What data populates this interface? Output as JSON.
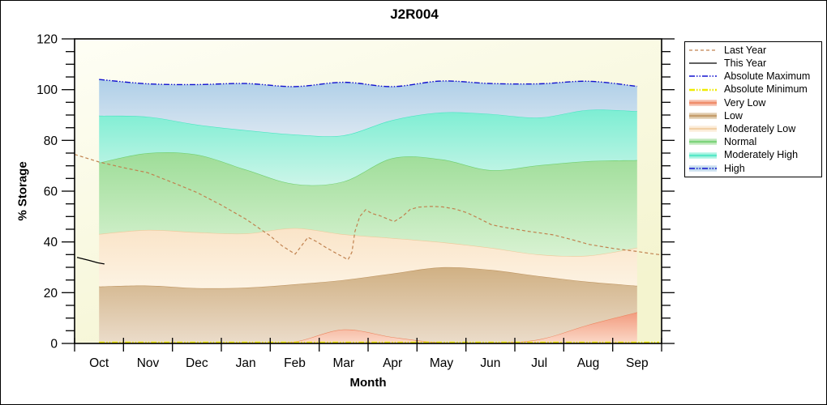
{
  "title": "J2R004",
  "axes": {
    "x_label": "Month",
    "y_label": "% Storage",
    "x_categories": [
      "Oct",
      "Nov",
      "Dec",
      "Jan",
      "Feb",
      "Mar",
      "Apr",
      "May",
      "Jun",
      "Jul",
      "Aug",
      "Sep"
    ],
    "y_major_ticks": [
      0,
      20,
      40,
      60,
      80,
      100,
      120
    ],
    "y_minor_step": 5,
    "ylim": [
      0,
      120
    ],
    "grid": false
  },
  "colors": {
    "plot_bg_top": "#fefef5",
    "plot_bg_bottom": "#f4f4cf",
    "axis": "#000000"
  },
  "legend": {
    "position": "right",
    "entries": [
      {
        "label": "Last Year",
        "type": "line",
        "style": "dashed",
        "color": "#c0824f",
        "width": 1.2
      },
      {
        "label": "This Year",
        "type": "line",
        "style": "solid",
        "color": "#000000",
        "width": 1.3
      },
      {
        "label": "Absolute Maximum",
        "type": "line",
        "style": "dashdotdot",
        "color": "#1212cf",
        "width": 1.4
      },
      {
        "label": "Absolute Minimum",
        "type": "line",
        "style": "dashdotdot",
        "color": "#efeb00",
        "width": 2.6
      },
      {
        "label": "Very Low",
        "type": "band",
        "fill": "#f29b7e",
        "edge": "#ed8660"
      },
      {
        "label": "Low",
        "type": "band",
        "fill": "#d0b083",
        "edge": "#bf9663"
      },
      {
        "label": "Moderately Low",
        "type": "band",
        "fill": "#fae4c8",
        "edge": "#eec99a"
      },
      {
        "label": "Normal",
        "type": "band",
        "fill": "#9edd98",
        "edge": "#6fcf6f"
      },
      {
        "label": "Moderately High",
        "type": "band",
        "fill": "#7deed3",
        "edge": "#48e5c2"
      },
      {
        "label": "High",
        "type": "band",
        "fill": "#afcfe8",
        "edge": "#1212cf",
        "edge_style": "dashdotdot"
      }
    ]
  },
  "chart_data": {
    "type": "area",
    "title": "J2R004",
    "xlabel": "Month",
    "ylabel": "% Storage",
    "categories": [
      "Oct",
      "Nov",
      "Dec",
      "Jan",
      "Feb",
      "Mar",
      "Apr",
      "May",
      "Jun",
      "Jul",
      "Aug",
      "Sep"
    ],
    "ylim": [
      0,
      120
    ],
    "x_note": "band values sampled at month centers, u = monthIndex + 0.5 on a 0..12 axis",
    "bands": [
      {
        "name": "Very Low",
        "top": [
          0.2,
          0.2,
          0.2,
          0.3,
          0.7,
          5.5,
          2.5,
          0.3,
          0.2,
          1.6,
          7.3,
          12.3
        ],
        "edge": "#ed8660",
        "fill_top": "#f29b7e",
        "fill_bottom": "#fbd9c8"
      },
      {
        "name": "Low",
        "top": [
          22.4,
          22.8,
          21.8,
          22.0,
          23.3,
          25.0,
          27.5,
          30.0,
          29.0,
          26.5,
          24.3,
          22.7
        ],
        "edge": "#bf9663",
        "fill_top": "#d0b083",
        "fill_bottom": "#ebdcca"
      },
      {
        "name": "Moderately Low",
        "top": [
          43.1,
          44.7,
          43.8,
          43.3,
          45.4,
          43.0,
          41.5,
          39.9,
          37.7,
          35.0,
          34.6,
          37.7
        ],
        "edge": "#eec99a",
        "fill_top": "#fae4c8",
        "fill_bottom": "#fdf3e3"
      },
      {
        "name": "Normal",
        "top": [
          71.2,
          75.0,
          74.4,
          68.5,
          62.8,
          63.8,
          73.0,
          72.5,
          68.3,
          70.2,
          71.8,
          72.2
        ],
        "edge": "#6fcf6f",
        "fill_top": "#9edd98",
        "fill_bottom": "#d8f2d2"
      },
      {
        "name": "Moderately High",
        "top": [
          89.7,
          89.3,
          86.2,
          84.0,
          82.3,
          82.0,
          88.0,
          91.0,
          90.4,
          89.0,
          92.0,
          91.5
        ],
        "edge": "#48e5c2",
        "fill_top": "#7deed3",
        "fill_bottom": "#cbf5e8"
      },
      {
        "name": "High",
        "top": [
          104.0,
          102.3,
          102.0,
          102.4,
          101.2,
          102.9,
          101.2,
          103.4,
          102.4,
          102.3,
          103.3,
          101.3
        ],
        "edge": null,
        "fill_top": "#afcfe8",
        "fill_bottom": "#d9e6f1"
      }
    ],
    "lines": [
      {
        "name": "Last Year",
        "style": "dashed",
        "color": "#c0824f",
        "width": 1.2,
        "smooth": false,
        "points": [
          [
            0,
            74.5
          ],
          [
            0.5,
            71.5
          ],
          [
            0.99,
            69.3
          ],
          [
            1.49,
            67.3
          ],
          [
            1.99,
            63.5
          ],
          [
            2.5,
            59.5
          ],
          [
            3.0,
            54.5
          ],
          [
            3.5,
            49.0
          ],
          [
            3.99,
            42.5
          ],
          [
            4.24,
            38.5
          ],
          [
            4.51,
            35.2
          ],
          [
            4.64,
            38.5
          ],
          [
            4.77,
            41.8
          ],
          [
            4.96,
            40.0
          ],
          [
            5.12,
            38.0
          ],
          [
            5.35,
            35.5
          ],
          [
            5.59,
            33.0
          ],
          [
            5.67,
            36.0
          ],
          [
            5.73,
            44.0
          ],
          [
            5.83,
            50.0
          ],
          [
            5.95,
            52.7
          ],
          [
            6.08,
            51.2
          ],
          [
            6.23,
            50.4
          ],
          [
            6.38,
            49.2
          ],
          [
            6.53,
            48.0
          ],
          [
            6.7,
            50.0
          ],
          [
            6.86,
            52.8
          ],
          [
            7.03,
            53.7
          ],
          [
            7.28,
            54.0
          ],
          [
            7.52,
            53.8
          ],
          [
            7.77,
            53.0
          ],
          [
            8.02,
            51.5
          ],
          [
            8.27,
            49.2
          ],
          [
            8.52,
            46.8
          ],
          [
            8.77,
            45.8
          ],
          [
            9.02,
            45.0
          ],
          [
            9.26,
            44.2
          ],
          [
            9.53,
            43.5
          ],
          [
            9.78,
            42.8
          ],
          [
            10.03,
            41.6
          ],
          [
            10.28,
            40.3
          ],
          [
            10.52,
            39.0
          ],
          [
            10.77,
            38.2
          ],
          [
            11.02,
            37.4
          ],
          [
            11.27,
            36.8
          ],
          [
            11.52,
            36.2
          ],
          [
            11.75,
            35.5
          ],
          [
            11.95,
            35.0
          ]
        ]
      },
      {
        "name": "This Year",
        "style": "solid",
        "color": "#000000",
        "width": 1.3,
        "smooth": false,
        "points": [
          [
            0.05,
            33.9
          ],
          [
            0.3,
            32.7
          ],
          [
            0.47,
            31.8
          ],
          [
            0.61,
            31.3
          ]
        ]
      },
      {
        "name": "Absolute Maximum",
        "style": "dashdotdot",
        "color": "#1212cf",
        "width": 1.4,
        "smooth": true,
        "points": [
          [
            0.5,
            104.0
          ],
          [
            1.5,
            102.3
          ],
          [
            2.5,
            102.0
          ],
          [
            3.5,
            102.4
          ],
          [
            4.5,
            101.2
          ],
          [
            5.5,
            102.9
          ],
          [
            6.5,
            101.2
          ],
          [
            7.5,
            103.4
          ],
          [
            8.5,
            102.4
          ],
          [
            9.5,
            102.3
          ],
          [
            10.5,
            103.3
          ],
          [
            11.5,
            101.3
          ]
        ]
      },
      {
        "name": "Absolute Minimum",
        "style": "dashdotdot",
        "color": "#efeb00",
        "width": 2.6,
        "smooth": false,
        "points": [
          [
            0.5,
            0.3
          ],
          [
            11.95,
            0.3
          ]
        ]
      }
    ]
  }
}
